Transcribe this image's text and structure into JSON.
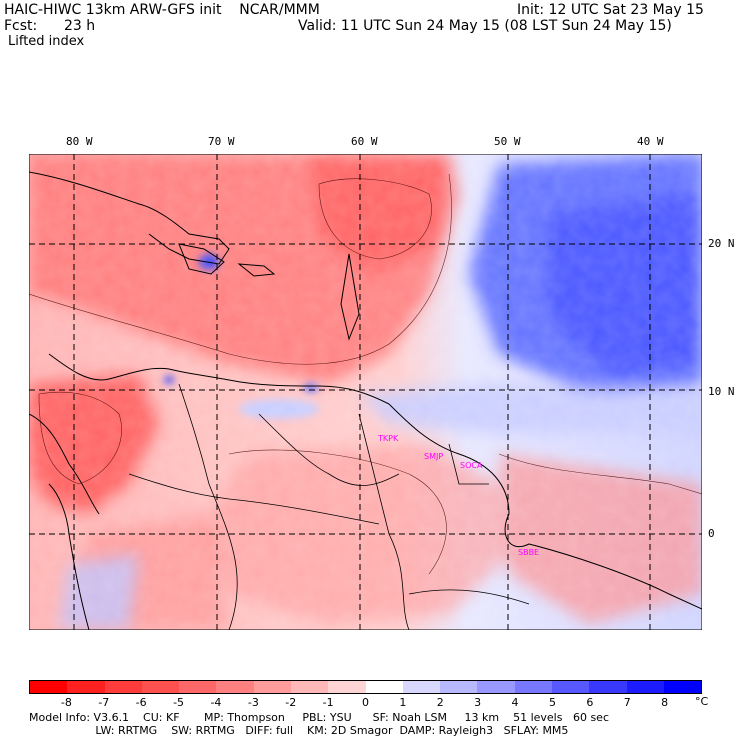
{
  "header": {
    "title": "HAIC-HIWC 13km ARW-GFS init    NCAR/MMM",
    "init": "Init: 12 UTC Sat 23 May 15",
    "fcst_label": "Fcst:",
    "fcst_value": "23 h",
    "valid": "Valid: 11 UTC Sun 24 May 15 (08 LST Sun 24 May 15)",
    "field": "Lifted index"
  },
  "axes": {
    "longitudes": [
      "80 W",
      "70 W",
      "60 W",
      "50 W",
      "40 W"
    ],
    "latitudes": [
      "20 N",
      "10 N",
      "0"
    ]
  },
  "stations": [
    "TKPK",
    "SMJP",
    "SOCA",
    "SBBE"
  ],
  "colorbar": {
    "ticks": [
      "-8",
      "-7",
      "-6",
      "-5",
      "-4",
      "-3",
      "-2",
      "-1",
      "0",
      "1",
      "2",
      "3",
      "4",
      "5",
      "6",
      "7",
      "8"
    ],
    "unit": "°C",
    "colors": [
      "#ff0000",
      "#ff2020",
      "#ff3c3c",
      "#ff5050",
      "#ff6868",
      "#ff8080",
      "#ff9c9c",
      "#ffb8b8",
      "#ffd4d4",
      "#ffffff",
      "#d8d8ff",
      "#b8b8ff",
      "#9898ff",
      "#7878ff",
      "#5858ff",
      "#3838ff",
      "#1c1cff",
      "#0000ff"
    ]
  },
  "footer": {
    "line1": "Model Info: V3.6.1    CU: KF       MP: Thompson     PBL: YSU      SF: Noah LSM     13 km    51 levels   60 sec",
    "line2": "                   LW: RRTMG    SW: RRTMG   DIFF: full    KM: 2D Smagor  DAMP: Rayleigh3   SFLAY: MM5"
  },
  "colors": {
    "warm": "#ff7070",
    "neutral": "#ffd8d8",
    "cold": "#5060ff",
    "station": "#ff00ff"
  }
}
